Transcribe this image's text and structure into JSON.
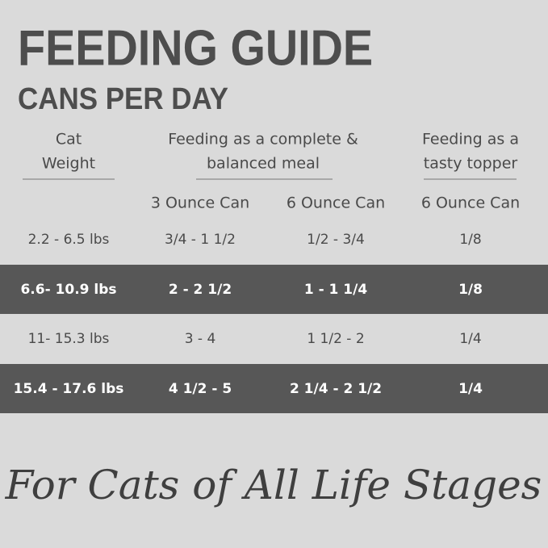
{
  "header": {
    "title": "FEEDING GUIDE",
    "subtitle": "CANS PER DAY"
  },
  "table": {
    "group_headers": [
      [
        "Cat",
        "Weight"
      ],
      [
        "Feeding as a complete &",
        "balanced meal"
      ],
      [
        "Feeding as a",
        "tasty topper"
      ]
    ],
    "sub_headers": [
      "3 Ounce Can",
      "6 Ounce Can",
      "6 Ounce Can"
    ],
    "rows": [
      [
        "2.2 - 6.5 lbs",
        "3/4 - 1 1/2",
        "1/2 - 3/4",
        "1/8"
      ],
      [
        "6.6- 10.9 lbs",
        "2 - 2 1/2",
        "1 - 1 1/4",
        "1/8"
      ],
      [
        "11- 15.3 lbs",
        "3 - 4",
        "1 1/2 - 2",
        "1/4"
      ],
      [
        "15.4 - 17.6 lbs",
        "4 1/2 - 5",
        "2 1/4 - 2 1/2",
        "1/4"
      ]
    ]
  },
  "footer": {
    "tagline": "For Cats of All Life Stages"
  }
}
